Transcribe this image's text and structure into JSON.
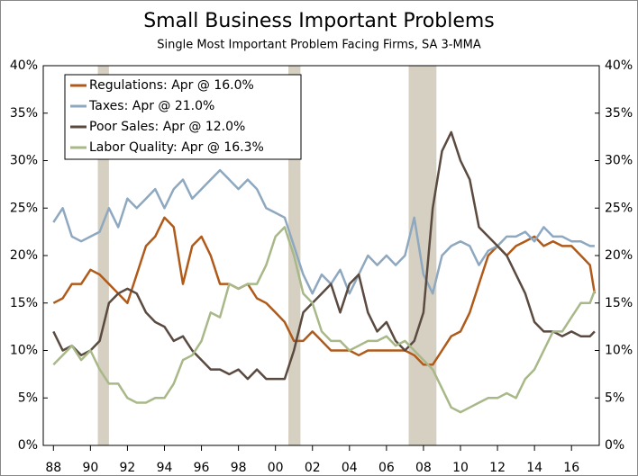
{
  "chart_data": {
    "type": "line",
    "title": "Small Business Important Problems",
    "subtitle": "Single Most Important Problem Facing Firms, SA 3-MMA",
    "x": [
      1988,
      1988.5,
      1989,
      1989.5,
      1990,
      1990.5,
      1991,
      1991.5,
      1992,
      1992.5,
      1993,
      1993.5,
      1994,
      1994.5,
      1995,
      1995.5,
      1996,
      1996.5,
      1997,
      1997.5,
      1998,
      1998.5,
      1999,
      1999.5,
      2000,
      2000.5,
      2001,
      2001.5,
      2002,
      2002.5,
      2003,
      2003.5,
      2004,
      2004.5,
      2005,
      2005.5,
      2006,
      2006.5,
      2007,
      2007.5,
      2008,
      2008.5,
      2009,
      2009.5,
      2010,
      2010.5,
      2011,
      2011.5,
      2012,
      2012.5,
      2013,
      2013.5,
      2014,
      2014.5,
      2015,
      2015.5,
      2016,
      2016.5,
      2017,
      2017.25
    ],
    "series": [
      {
        "name": "Regulations: Apr @ 16.0%",
        "color": "#b05a1a",
        "values": [
          15,
          15.5,
          17,
          17,
          18.5,
          18,
          17,
          16,
          15,
          18,
          21,
          22,
          24,
          23,
          17,
          21,
          22,
          20,
          17,
          17,
          16.5,
          17,
          15.5,
          15,
          14,
          13,
          11,
          11,
          12,
          11,
          10,
          10,
          10,
          9.5,
          10,
          10,
          10,
          10,
          10,
          9.5,
          8.5,
          8.5,
          10,
          11.5,
          12,
          14,
          17,
          20,
          21,
          20,
          21,
          21.5,
          22,
          21,
          21.5,
          21,
          21,
          20,
          19,
          16
        ]
      },
      {
        "name": "Taxes: Apr @ 21.0%",
        "color": "#8ea8c0",
        "values": [
          23.5,
          25,
          22,
          21.5,
          22,
          22.5,
          25,
          23,
          26,
          25,
          26,
          27,
          25,
          27,
          28,
          26,
          27,
          28,
          29,
          28,
          27,
          28,
          27,
          25,
          24.5,
          24,
          21,
          18,
          16,
          18,
          17,
          18.5,
          16,
          18,
          20,
          19,
          20,
          19,
          20,
          24,
          18,
          16,
          20,
          21,
          21.5,
          21,
          19,
          20.5,
          21,
          22,
          22,
          22.5,
          21.5,
          23,
          22,
          22,
          21.5,
          21.5,
          21,
          21
        ]
      },
      {
        "name": "Poor Sales: Apr @ 12.0%",
        "color": "#5a4a40",
        "values": [
          12,
          10,
          10.5,
          9.5,
          10,
          11,
          15,
          16,
          16.5,
          16,
          14,
          13,
          12.5,
          11,
          11.5,
          10,
          9,
          8,
          8,
          7.5,
          8,
          7,
          8,
          7,
          7,
          7,
          10,
          14,
          15,
          16,
          17,
          14,
          17,
          18,
          14,
          12,
          13,
          11,
          10,
          11,
          14,
          25,
          31,
          33,
          30,
          28,
          23,
          22,
          21,
          20,
          18,
          16,
          13,
          12,
          12,
          11.5,
          12,
          11.5,
          11.5,
          12
        ]
      },
      {
        "name": "Labor Quality: Apr @ 16.3%",
        "color": "#a8b888",
        "values": [
          8.5,
          9.5,
          10.5,
          9,
          10,
          8,
          6.5,
          6.5,
          5,
          4.5,
          4.5,
          5,
          5,
          6.5,
          9,
          9.5,
          11,
          14,
          13.5,
          17,
          16.5,
          17,
          17,
          19,
          22,
          23,
          20,
          16,
          15,
          12,
          11,
          11,
          10,
          10.5,
          11,
          11,
          11.5,
          10.5,
          11,
          10,
          9,
          8,
          6,
          4,
          3.5,
          4,
          4.5,
          5,
          5,
          5.5,
          5,
          7,
          8,
          10,
          12,
          12,
          13.5,
          15,
          15,
          16.3
        ]
      }
    ],
    "recessions": [
      {
        "start": 1990.4,
        "end": 1991.0
      },
      {
        "start": 2000.7,
        "end": 2001.35
      },
      {
        "start": 2007.2,
        "end": 2008.7
      }
    ],
    "recession_color": "#d6d0c2",
    "xlim": [
      1987.45,
      2017.5
    ],
    "xticks": [
      {
        "value": 1988,
        "label": "88"
      },
      {
        "value": 1990,
        "label": "90"
      },
      {
        "value": 1992,
        "label": "92"
      },
      {
        "value": 1994,
        "label": "94"
      },
      {
        "value": 1996,
        "label": "96"
      },
      {
        "value": 1998,
        "label": "98"
      },
      {
        "value": 2000,
        "label": "00"
      },
      {
        "value": 2002,
        "label": "02"
      },
      {
        "value": 2004,
        "label": "04"
      },
      {
        "value": 2006,
        "label": "06"
      },
      {
        "value": 2008,
        "label": "08"
      },
      {
        "value": 2010,
        "label": "10"
      },
      {
        "value": 2012,
        "label": "12"
      },
      {
        "value": 2014,
        "label": "14"
      },
      {
        "value": 2016,
        "label": "16"
      }
    ],
    "ylim": [
      0,
      40
    ],
    "yticks": [
      {
        "value": 0,
        "label": "0%"
      },
      {
        "value": 5,
        "label": "5%"
      },
      {
        "value": 10,
        "label": "10%"
      },
      {
        "value": 15,
        "label": "15%"
      },
      {
        "value": 20,
        "label": "20%"
      },
      {
        "value": 25,
        "label": "25%"
      },
      {
        "value": 30,
        "label": "30%"
      },
      {
        "value": 35,
        "label": "35%"
      },
      {
        "value": 40,
        "label": "40%"
      }
    ],
    "legend": "upper left"
  }
}
